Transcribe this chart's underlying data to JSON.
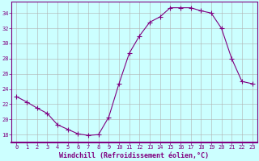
{
  "x": [
    0,
    1,
    2,
    3,
    4,
    5,
    6,
    7,
    8,
    9,
    10,
    11,
    12,
    13,
    14,
    15,
    16,
    17,
    18,
    19,
    20,
    21,
    22,
    23
  ],
  "y": [
    23.0,
    22.3,
    21.5,
    20.8,
    19.3,
    18.7,
    18.1,
    17.9,
    18.0,
    20.3,
    24.7,
    28.7,
    31.0,
    32.8,
    33.5,
    34.7,
    34.7,
    34.7,
    34.3,
    34.0,
    32.0,
    28.0,
    25.0,
    24.7
  ],
  "line_color": "#800080",
  "marker": "+",
  "bg_color": "#ccffff",
  "grid_color": "#b0b0b0",
  "xlabel": "Windchill (Refroidissement éolien,°C)",
  "ylabel_ticks": [
    18,
    20,
    22,
    24,
    26,
    28,
    30,
    32,
    34
  ],
  "xlim": [
    -0.5,
    23.5
  ],
  "ylim": [
    17.0,
    35.5
  ],
  "xticks": [
    0,
    1,
    2,
    3,
    4,
    5,
    6,
    7,
    8,
    9,
    10,
    11,
    12,
    13,
    14,
    15,
    16,
    17,
    18,
    19,
    20,
    21,
    22,
    23
  ],
  "axis_color": "#800080",
  "font_color": "#800080",
  "tick_fontsize": 5.0,
  "xlabel_fontsize": 6.0
}
